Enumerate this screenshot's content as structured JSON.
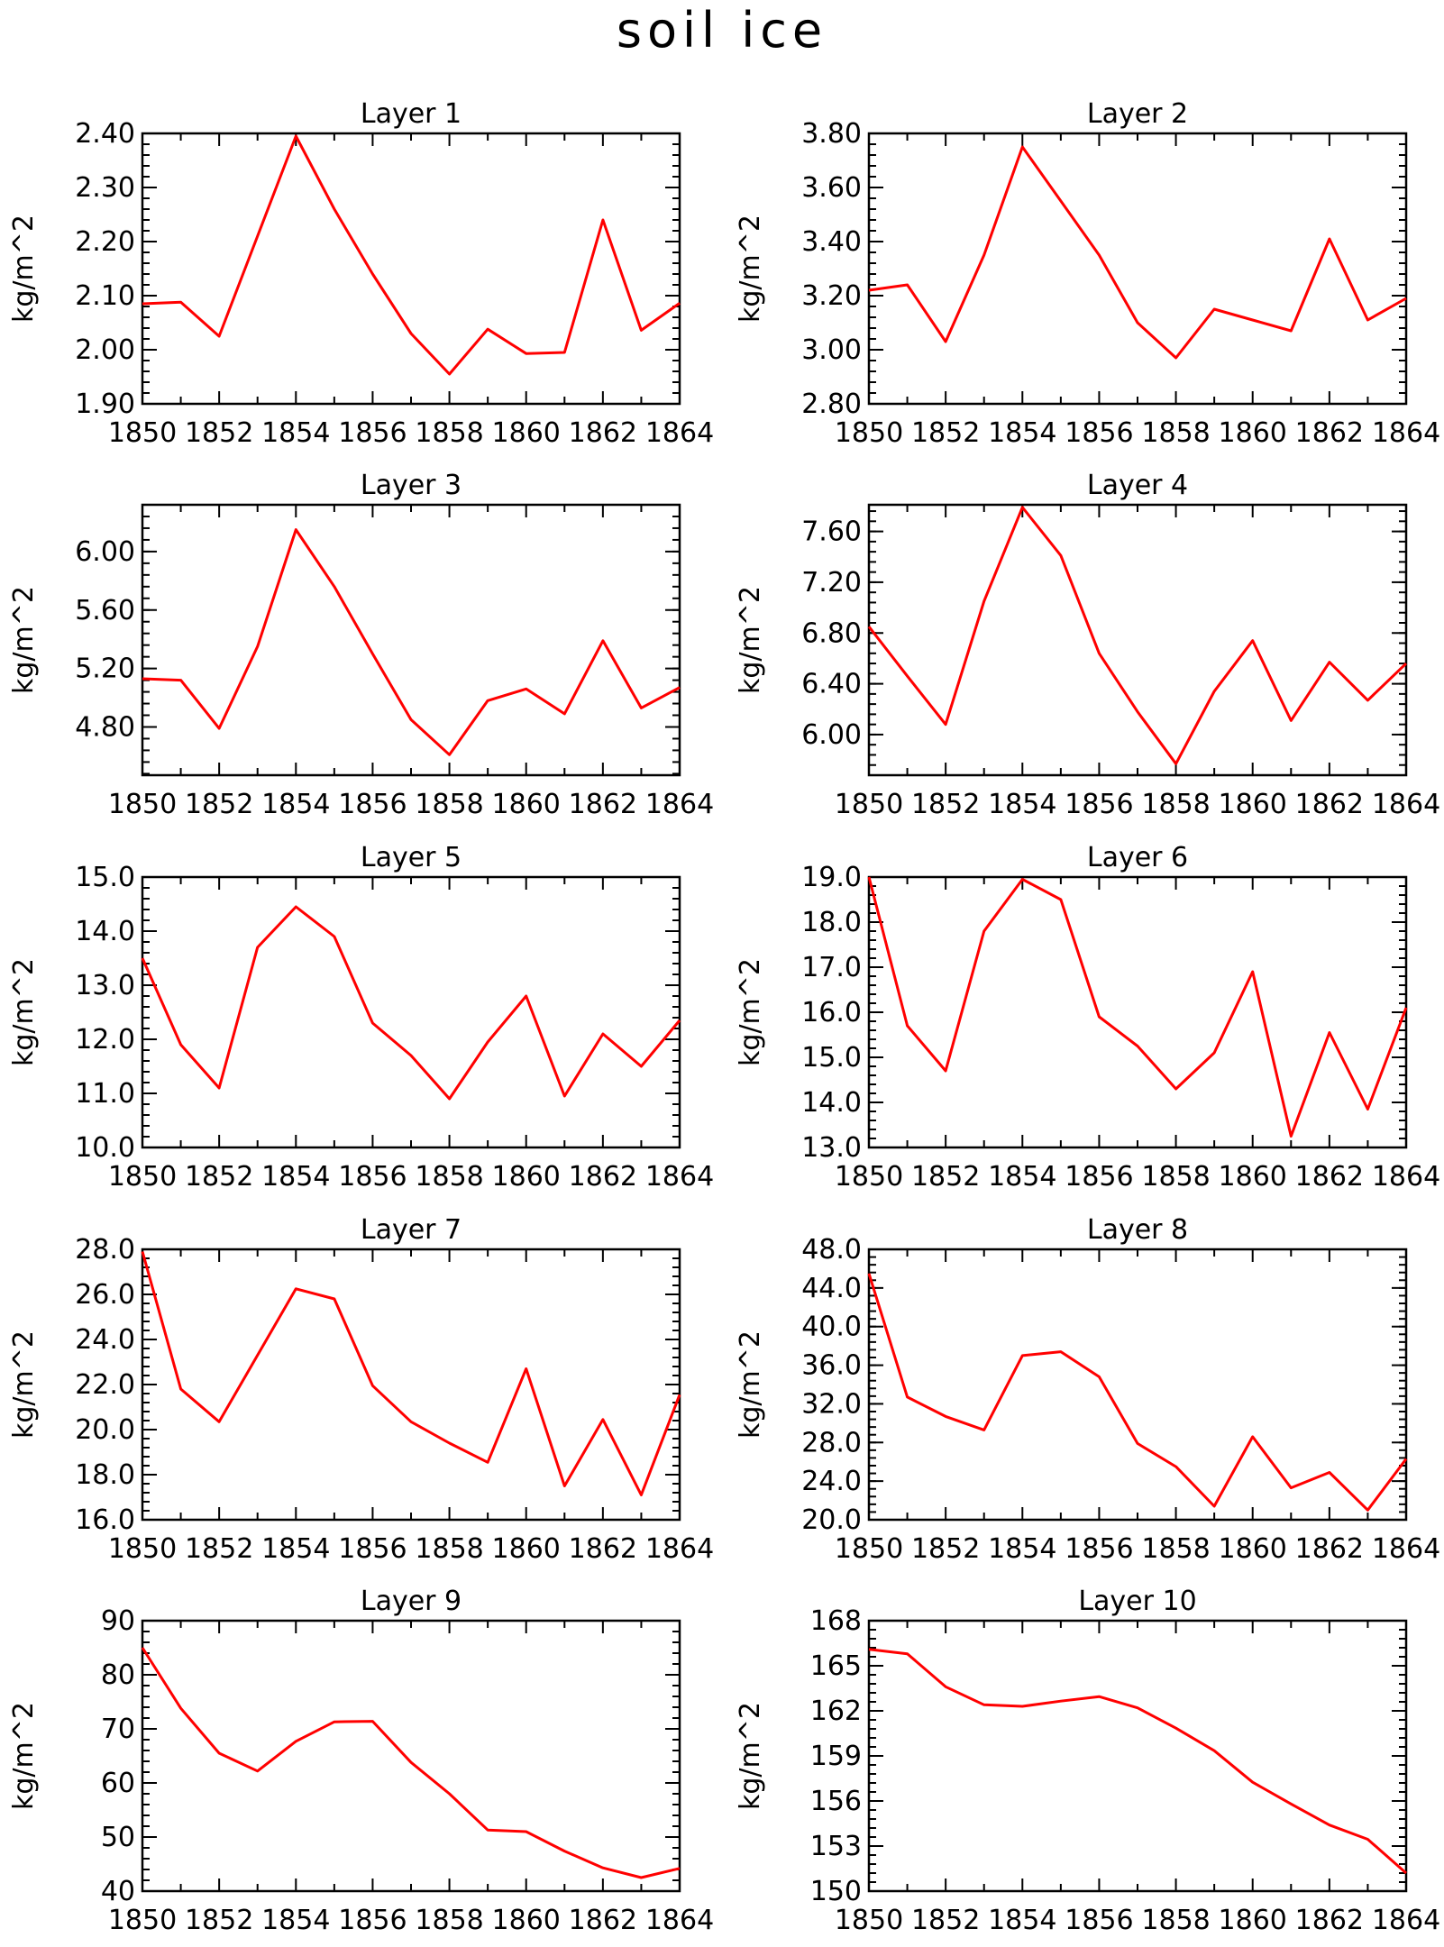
{
  "chart_data": {
    "type": "line",
    "title": "soil ice",
    "x": [
      1850,
      1851,
      1852,
      1853,
      1854,
      1855,
      1856,
      1857,
      1858,
      1859,
      1860,
      1861,
      1862,
      1863,
      1864
    ],
    "xticks": [
      "1850",
      "1852",
      "1854",
      "1856",
      "1858",
      "1860",
      "1862",
      "1864"
    ],
    "xlim": [
      1850,
      1864
    ],
    "panels": [
      {
        "title": "Layer 1",
        "ylabel": "kg/m^2",
        "ylim": [
          1.9,
          2.4
        ],
        "yticks": [
          "1.90",
          "2.00",
          "2.10",
          "2.20",
          "2.30",
          "2.40"
        ],
        "values": [
          2.085,
          2.088,
          2.025,
          2.21,
          2.395,
          2.26,
          2.14,
          2.03,
          1.955,
          2.038,
          1.993,
          1.995,
          2.24,
          2.036,
          2.086
        ]
      },
      {
        "title": "Layer 2",
        "ylabel": "kg/m^2",
        "ylim": [
          2.8,
          3.8
        ],
        "yticks": [
          "2.80",
          "3.00",
          "3.20",
          "3.40",
          "3.60",
          "3.80"
        ],
        "values": [
          3.22,
          3.24,
          3.03,
          3.35,
          3.75,
          3.55,
          3.35,
          3.1,
          2.97,
          3.15,
          3.11,
          3.07,
          3.41,
          3.11,
          3.19
        ]
      },
      {
        "title": "Layer 3",
        "ylabel": "kg/m^2",
        "ylim": [
          4.47,
          6.32
        ],
        "yticks": [
          "4.80",
          "5.20",
          "5.60",
          "6.00"
        ],
        "values": [
          5.13,
          5.12,
          4.79,
          5.35,
          6.15,
          5.76,
          5.3,
          4.85,
          4.61,
          4.98,
          5.06,
          4.89,
          5.39,
          4.93,
          5.07
        ]
      },
      {
        "title": "Layer 4",
        "ylabel": "kg/m^2",
        "ylim": [
          5.68,
          7.81
        ],
        "yticks": [
          "6.00",
          "6.40",
          "6.80",
          "7.20",
          "7.60"
        ],
        "values": [
          6.85,
          6.46,
          6.08,
          7.05,
          7.79,
          7.41,
          6.64,
          6.18,
          5.77,
          6.34,
          6.74,
          6.11,
          6.57,
          6.27,
          6.56
        ]
      },
      {
        "title": "Layer 5",
        "ylabel": "kg/m^2",
        "ylim": [
          10.0,
          15.0
        ],
        "yticks": [
          "10.0",
          "11.0",
          "12.0",
          "13.0",
          "14.0",
          "15.0"
        ],
        "values": [
          13.5,
          11.9,
          11.1,
          13.7,
          14.45,
          13.9,
          12.3,
          11.7,
          10.9,
          11.95,
          12.8,
          10.95,
          12.1,
          11.5,
          12.35
        ]
      },
      {
        "title": "Layer 6",
        "ylabel": "kg/m^2",
        "ylim": [
          13.0,
          19.0
        ],
        "yticks": [
          "13.0",
          "14.0",
          "15.0",
          "16.0",
          "17.0",
          "18.0",
          "19.0"
        ],
        "values": [
          19.0,
          15.7,
          14.7,
          17.8,
          18.95,
          18.5,
          15.9,
          15.25,
          14.3,
          15.1,
          16.9,
          13.25,
          15.55,
          13.85,
          16.1
        ]
      },
      {
        "title": "Layer 7",
        "ylabel": "kg/m^2",
        "ylim": [
          16.0,
          28.0
        ],
        "yticks": [
          "16.0",
          "18.0",
          "20.0",
          "22.0",
          "24.0",
          "26.0",
          "28.0"
        ],
        "values": [
          27.9,
          21.8,
          20.35,
          23.3,
          26.25,
          25.8,
          21.95,
          20.35,
          19.4,
          18.55,
          22.7,
          17.5,
          20.45,
          17.1,
          21.55
        ]
      },
      {
        "title": "Layer 8",
        "ylabel": "kg/m^2",
        "ylim": [
          20.0,
          48.0
        ],
        "yticks": [
          "20.0",
          "24.0",
          "28.0",
          "32.0",
          "36.0",
          "40.0",
          "44.0",
          "48.0"
        ],
        "values": [
          45.5,
          32.7,
          30.7,
          29.3,
          37.0,
          37.4,
          34.8,
          27.9,
          25.5,
          21.4,
          28.6,
          23.3,
          24.9,
          21.0,
          26.3
        ]
      },
      {
        "title": "Layer 9",
        "ylabel": "kg/m^2",
        "ylim": [
          40.0,
          90.0
        ],
        "yticks": [
          "40",
          "50",
          "60",
          "70",
          "80",
          "90"
        ],
        "values": [
          85.0,
          73.8,
          65.5,
          62.2,
          67.7,
          71.3,
          71.4,
          63.8,
          58.0,
          51.3,
          51.0,
          47.4,
          44.3,
          42.5,
          44.2
        ]
      },
      {
        "title": "Layer 10",
        "ylabel": "kg/m^2",
        "ylim": [
          150.0,
          168.0
        ],
        "yticks": [
          "150",
          "153",
          "156",
          "159",
          "162",
          "165",
          "168"
        ],
        "values": [
          166.1,
          165.8,
          163.6,
          162.4,
          162.3,
          162.65,
          162.95,
          162.2,
          160.85,
          159.35,
          157.25,
          155.8,
          154.4,
          153.45,
          151.2
        ]
      }
    ]
  }
}
